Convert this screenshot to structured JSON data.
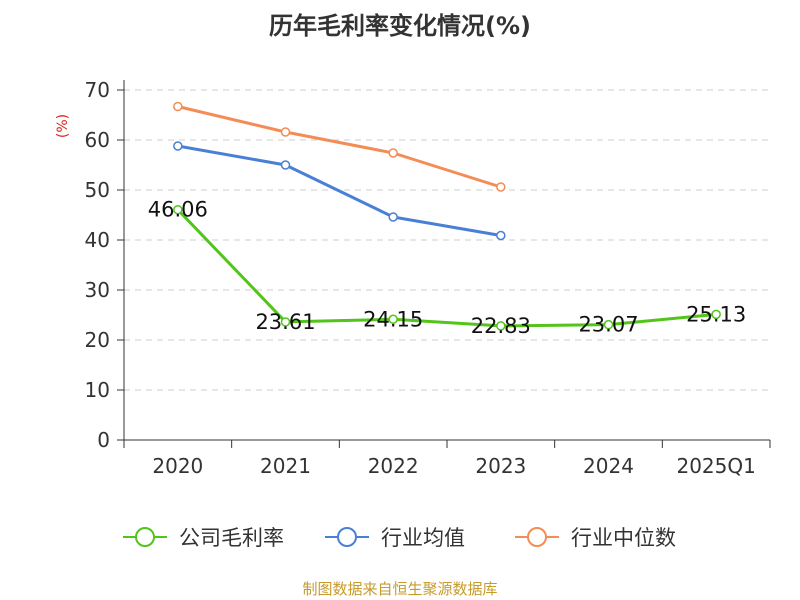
{
  "chart_data": {
    "type": "line",
    "title": "历年毛利率变化情况(%)",
    "ylabel": "(%)",
    "xlabel": "",
    "ylim": [
      0,
      70
    ],
    "yticks": [
      0,
      10,
      20,
      30,
      40,
      50,
      60,
      70
    ],
    "grid": true,
    "legend_position": "bottom",
    "categories": [
      "2020",
      "2021",
      "2022",
      "2023",
      "2024",
      "2025Q1"
    ],
    "series": [
      {
        "name": "公司毛利率",
        "color": "#52c41a",
        "values": [
          46.06,
          23.61,
          24.15,
          22.83,
          23.07,
          25.13
        ],
        "labels": [
          "46.06",
          "23.61",
          "24.15",
          "22.83",
          "23.07",
          "25.13"
        ]
      },
      {
        "name": "行业均值",
        "color": "#4a7fd6",
        "values": [
          58.8,
          55.0,
          44.6,
          40.9,
          null,
          null
        ]
      },
      {
        "name": "行业中位数",
        "color": "#f48c55",
        "values": [
          66.7,
          61.6,
          57.4,
          50.6,
          null,
          null
        ]
      }
    ],
    "source": "制图数据来自恒生聚源数据库"
  }
}
